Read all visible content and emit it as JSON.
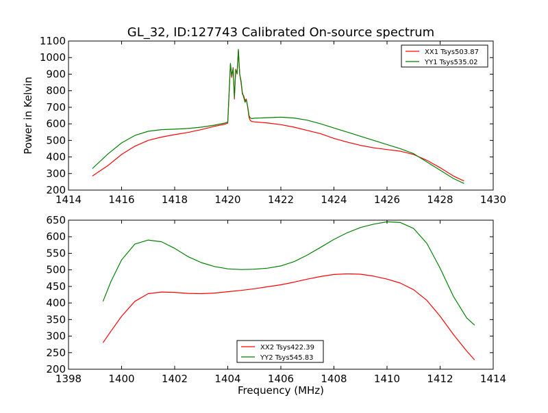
{
  "figure": {
    "title": "GL_32, ID:127743 Calibrated On-source spectrum"
  },
  "chart_data": [
    {
      "type": "line",
      "title": "GL_32, ID:127743 Calibrated On-source spectrum",
      "xlabel": "",
      "ylabel": "Power in Kelvin",
      "xlim": [
        1414,
        1430
      ],
      "ylim": [
        200,
        1100
      ],
      "xticks": [
        1414,
        1416,
        1418,
        1420,
        1422,
        1424,
        1426,
        1428,
        1430
      ],
      "yticks": [
        200,
        300,
        400,
        500,
        600,
        700,
        800,
        900,
        1000,
        1100
      ],
      "legend_position": "top-right",
      "grid": false,
      "series": [
        {
          "name": "XX1 Tsys503.87",
          "color": "#ff0000",
          "x": [
            1414.9,
            1415.5,
            1416.0,
            1416.5,
            1417.0,
            1417.5,
            1418.0,
            1418.5,
            1419.0,
            1419.5,
            1419.9,
            1420.0,
            1420.1,
            1420.15,
            1420.2,
            1420.25,
            1420.3,
            1420.35,
            1420.4,
            1420.45,
            1420.5,
            1420.55,
            1420.6,
            1420.65,
            1420.7,
            1420.75,
            1420.8,
            1420.85,
            1420.9,
            1421.0,
            1421.5,
            1422.0,
            1422.5,
            1423.0,
            1423.5,
            1424.0,
            1424.5,
            1425.0,
            1425.5,
            1426.0,
            1426.5,
            1427.0,
            1427.5,
            1428.0,
            1428.5,
            1428.9
          ],
          "y": [
            285,
            350,
            415,
            465,
            500,
            520,
            535,
            548,
            565,
            585,
            598,
            605,
            960,
            880,
            940,
            750,
            930,
            900,
            1045,
            900,
            850,
            780,
            770,
            740,
            750,
            700,
            640,
            620,
            615,
            612,
            605,
            595,
            580,
            560,
            540,
            512,
            490,
            470,
            455,
            445,
            435,
            415,
            380,
            335,
            285,
            255
          ]
        },
        {
          "name": "YY1 Tsys535.02",
          "color": "#008000",
          "x": [
            1414.9,
            1415.5,
            1416.0,
            1416.5,
            1417.0,
            1417.5,
            1418.0,
            1418.5,
            1419.0,
            1419.5,
            1419.9,
            1420.0,
            1420.1,
            1420.15,
            1420.2,
            1420.25,
            1420.3,
            1420.35,
            1420.4,
            1420.45,
            1420.5,
            1420.55,
            1420.6,
            1420.65,
            1420.7,
            1420.75,
            1420.8,
            1420.85,
            1420.9,
            1421.0,
            1421.5,
            1422.0,
            1422.5,
            1423.0,
            1423.5,
            1424.0,
            1424.5,
            1425.0,
            1425.5,
            1426.0,
            1426.5,
            1427.0,
            1427.5,
            1428.0,
            1428.5,
            1428.9
          ],
          "y": [
            330,
            420,
            485,
            530,
            555,
            565,
            568,
            572,
            580,
            592,
            605,
            612,
            965,
            890,
            935,
            760,
            925,
            905,
            1050,
            900,
            860,
            790,
            760,
            730,
            745,
            705,
            650,
            635,
            632,
            634,
            637,
            640,
            635,
            622,
            600,
            575,
            550,
            525,
            500,
            475,
            450,
            420,
            370,
            320,
            270,
            240
          ]
        }
      ]
    },
    {
      "type": "line",
      "title": "",
      "xlabel": "Frequency (MHz)",
      "ylabel": "",
      "xlim": [
        1398,
        1414
      ],
      "ylim": [
        200,
        650
      ],
      "xticks": [
        1398,
        1400,
        1402,
        1404,
        1406,
        1408,
        1410,
        1412,
        1414
      ],
      "yticks": [
        200,
        250,
        300,
        350,
        400,
        450,
        500,
        550,
        600,
        650
      ],
      "legend_position": "bottom-center",
      "grid": false,
      "series": [
        {
          "name": "XX2 Tsys422.39",
          "color": "#ff0000",
          "x": [
            1399.3,
            1399.6,
            1400.0,
            1400.5,
            1401.0,
            1401.5,
            1402.0,
            1402.5,
            1403.0,
            1403.5,
            1404.0,
            1404.5,
            1405.0,
            1405.5,
            1406.0,
            1406.5,
            1407.0,
            1407.5,
            1408.0,
            1408.5,
            1409.0,
            1409.5,
            1410.0,
            1410.5,
            1411.0,
            1411.5,
            1412.0,
            1412.5,
            1413.0,
            1413.3
          ],
          "y": [
            280,
            315,
            360,
            405,
            428,
            433,
            432,
            429,
            428,
            430,
            434,
            438,
            443,
            449,
            455,
            463,
            472,
            480,
            486,
            488,
            487,
            481,
            472,
            460,
            440,
            408,
            360,
            305,
            255,
            228
          ]
        },
        {
          "name": "YY2 Tsys545.83",
          "color": "#008000",
          "x": [
            1399.3,
            1399.6,
            1400.0,
            1400.5,
            1401.0,
            1401.5,
            1402.0,
            1402.5,
            1403.0,
            1403.5,
            1404.0,
            1404.5,
            1405.0,
            1405.5,
            1406.0,
            1406.5,
            1407.0,
            1407.5,
            1408.0,
            1408.5,
            1409.0,
            1409.5,
            1410.0,
            1410.5,
            1411.0,
            1411.5,
            1412.0,
            1412.5,
            1413.0,
            1413.3
          ],
          "y": [
            405,
            465,
            530,
            578,
            590,
            585,
            565,
            540,
            522,
            510,
            503,
            501,
            502,
            505,
            512,
            525,
            545,
            568,
            592,
            612,
            628,
            638,
            645,
            643,
            625,
            580,
            505,
            420,
            355,
            333
          ]
        }
      ]
    }
  ]
}
